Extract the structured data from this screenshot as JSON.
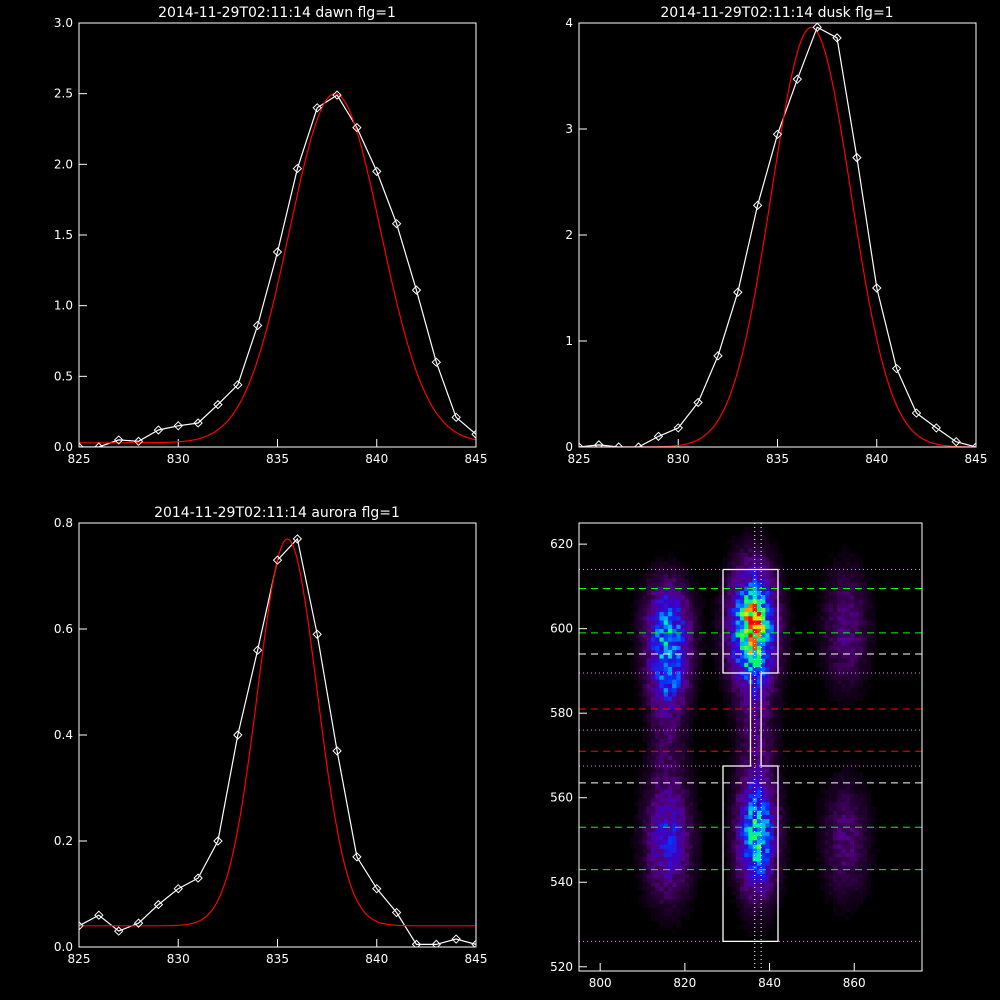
{
  "colors": {
    "background": "#000000",
    "axes": "#ffffff",
    "data_line": "#ffffff",
    "fit_line": "#ff0000"
  },
  "chart_data": [
    {
      "id": "dawn",
      "type": "line",
      "title": "2014-11-29T02:11:14 dawn flg=1",
      "xlim": [
        825,
        845
      ],
      "ylim": [
        0,
        3.0
      ],
      "xticks": [
        "825",
        "830",
        "835",
        "840",
        "845"
      ],
      "xtick_values": [
        825,
        830,
        835,
        840,
        845
      ],
      "yticks": [
        "0.0",
        "0.5",
        "1.0",
        "1.5",
        "2.0",
        "2.5",
        "3.0"
      ],
      "ytick_values": [
        0,
        0.5,
        1.0,
        1.5,
        2.0,
        2.5,
        3.0
      ],
      "series": [
        {
          "role": "data",
          "marker": "diamond",
          "color": "#ffffff",
          "x": [
            825,
            826,
            827,
            828,
            829,
            830,
            831,
            832,
            833,
            834,
            835,
            836,
            837,
            838,
            839,
            840,
            841,
            842,
            843,
            844,
            845
          ],
          "y": [
            0.0,
            0.0,
            0.05,
            0.04,
            0.12,
            0.15,
            0.17,
            0.3,
            0.44,
            0.86,
            1.38,
            1.97,
            2.4,
            2.49,
            2.26,
            1.95,
            1.58,
            1.11,
            0.6,
            0.21,
            0.09
          ]
        },
        {
          "role": "fit",
          "marker": "none",
          "color": "#ff0000",
          "gaussian": {
            "amp": 2.47,
            "center": 837.9,
            "sigma": 2.3,
            "offset": 0.03
          }
        }
      ]
    },
    {
      "id": "dusk",
      "type": "line",
      "title": "2014-11-29T02:11:14 dusk flg=1",
      "xlim": [
        825,
        845
      ],
      "ylim": [
        0,
        4
      ],
      "xticks": [
        "825",
        "830",
        "835",
        "840",
        "845"
      ],
      "xtick_values": [
        825,
        830,
        835,
        840,
        845
      ],
      "yticks": [
        "0",
        "1",
        "2",
        "3",
        "4"
      ],
      "ytick_values": [
        0,
        1,
        2,
        3,
        4
      ],
      "series": [
        {
          "role": "data",
          "marker": "diamond",
          "color": "#ffffff",
          "x": [
            825,
            826,
            827,
            828,
            829,
            830,
            831,
            832,
            833,
            834,
            835,
            836,
            837,
            838,
            839,
            840,
            841,
            842,
            843,
            844,
            845
          ],
          "y": [
            0.0,
            0.02,
            0.0,
            0.0,
            0.1,
            0.18,
            0.42,
            0.86,
            1.46,
            2.28,
            2.95,
            3.47,
            3.96,
            3.86,
            2.73,
            1.5,
            0.74,
            0.32,
            0.18,
            0.05,
            0.0
          ]
        },
        {
          "role": "fit",
          "marker": "none",
          "color": "#ff0000",
          "gaussian": {
            "amp": 3.96,
            "center": 836.7,
            "sigma": 2.0,
            "offset": 0.0
          }
        }
      ]
    },
    {
      "id": "aurora",
      "type": "line",
      "title": "2014-11-29T02:11:14 aurora flg=1",
      "xlim": [
        825,
        845
      ],
      "ylim": [
        0,
        0.8
      ],
      "xticks": [
        "825",
        "830",
        "835",
        "840",
        "845"
      ],
      "xtick_values": [
        825,
        830,
        835,
        840,
        845
      ],
      "yticks": [
        "0.0",
        "0.2",
        "0.4",
        "0.6",
        "0.8"
      ],
      "ytick_values": [
        0,
        0.2,
        0.4,
        0.6,
        0.8
      ],
      "series": [
        {
          "role": "data",
          "marker": "diamond",
          "color": "#ffffff",
          "x": [
            825,
            826,
            827,
            828,
            829,
            830,
            831,
            832,
            833,
            834,
            835,
            836,
            837,
            838,
            839,
            840,
            841,
            842,
            843,
            844,
            845
          ],
          "y": [
            0.04,
            0.06,
            0.03,
            0.045,
            0.08,
            0.11,
            0.13,
            0.2,
            0.4,
            0.56,
            0.73,
            0.77,
            0.59,
            0.37,
            0.17,
            0.11,
            0.065,
            0.005,
            0.005,
            0.015,
            0.005
          ]
        },
        {
          "role": "fit",
          "marker": "none",
          "color": "#ff0000",
          "gaussian": {
            "amp": 0.73,
            "center": 835.5,
            "sigma": 1.5,
            "offset": 0.04
          }
        }
      ]
    },
    {
      "id": "image",
      "type": "heatmap",
      "title": "",
      "xlim": [
        795,
        876
      ],
      "ylim": [
        519,
        625
      ],
      "xticks": [
        "800",
        "820",
        "840",
        "860"
      ],
      "xtick_values": [
        800,
        820,
        840,
        860
      ],
      "yticks": [
        "520",
        "540",
        "560",
        "580",
        "600",
        "620"
      ],
      "ytick_values": [
        520,
        540,
        560,
        580,
        600,
        620
      ],
      "blobs": [
        {
          "x": 816,
          "y": 600,
          "sx": 3.5,
          "sy": 7,
          "amp": 0.48
        },
        {
          "x": 816,
          "y": 588,
          "sx": 3,
          "sy": 5,
          "amp": 0.3
        },
        {
          "x": 836,
          "y": 600,
          "sx": 3.5,
          "sy": 9,
          "amp": 0.8
        },
        {
          "x": 836.5,
          "y": 602,
          "sx": 1.5,
          "sy": 2,
          "amp": 0.35
        },
        {
          "x": 816,
          "y": 550,
          "sx": 3.5,
          "sy": 9,
          "amp": 0.32
        },
        {
          "x": 837,
          "y": 551,
          "sx": 3,
          "sy": 9,
          "amp": 0.58
        },
        {
          "x": 858,
          "y": 600,
          "sx": 3.5,
          "sy": 9,
          "amp": 0.18
        },
        {
          "x": 858,
          "y": 550,
          "sx": 3.5,
          "sy": 9,
          "amp": 0.16
        },
        {
          "x": 816,
          "y": 575,
          "sx": 3,
          "sy": 10,
          "amp": 0.12
        },
        {
          "x": 837,
          "y": 575,
          "sx": 3,
          "sy": 10,
          "amp": 0.12
        }
      ],
      "hlines": [
        {
          "y": 614,
          "color": "#ff80ff",
          "style": "dotted"
        },
        {
          "y": 609.5,
          "color": "#00ff00",
          "style": "dashed"
        },
        {
          "y": 599,
          "color": "#00ff00",
          "style": "dashed"
        },
        {
          "y": 594,
          "color": "#ffffff",
          "style": "dashed"
        },
        {
          "y": 589.5,
          "color": "#ff80ff",
          "style": "dotted"
        },
        {
          "y": 581,
          "color": "#ff0000",
          "style": "dashed"
        },
        {
          "y": 576,
          "color": "#ff80ff",
          "style": "dotted"
        },
        {
          "y": 571,
          "color": "#ff0000",
          "style": "dashed"
        },
        {
          "y": 567.5,
          "color": "#ff80ff",
          "style": "dotted"
        },
        {
          "y": 563.5,
          "color": "#ffffff",
          "style": "dashed"
        },
        {
          "y": 553,
          "color": "#00ff00",
          "style": "dashed"
        },
        {
          "y": 543,
          "color": "#00ff00",
          "style": "dashed"
        },
        {
          "y": 526,
          "color": "#ff80ff",
          "style": "dotted"
        }
      ],
      "vlines": [
        {
          "x": 836.5,
          "color": "#ffffff",
          "style": "dotted"
        },
        {
          "x": 838,
          "color": "#ffffff",
          "style": "dotted"
        }
      ],
      "aperture_outline": [
        [
          829,
          614
        ],
        [
          842,
          614
        ],
        [
          842,
          589.5
        ],
        [
          838,
          589.5
        ],
        [
          838,
          567.5
        ],
        [
          842,
          567.5
        ],
        [
          842,
          526
        ],
        [
          829,
          526
        ],
        [
          829,
          567.5
        ],
        [
          835.5,
          567.5
        ],
        [
          835.5,
          589.5
        ],
        [
          829,
          589.5
        ],
        [
          829,
          614
        ]
      ]
    }
  ]
}
